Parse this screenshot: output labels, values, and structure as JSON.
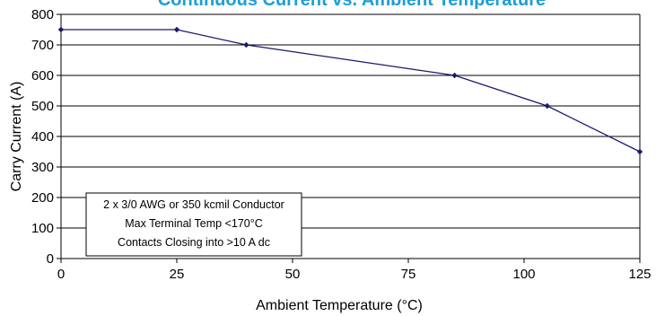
{
  "chart_data": {
    "type": "line",
    "title": "Continuous Current vs. Ambient Temperature",
    "xlabel": "Ambient Temperature (°C)",
    "ylabel": "Carry Current (A)",
    "xlim": [
      0,
      125
    ],
    "ylim": [
      0,
      800
    ],
    "xticks": [
      "0",
      "25",
      "50",
      "75",
      "100",
      "125"
    ],
    "yticks": [
      "0",
      "100",
      "200",
      "300",
      "400",
      "500",
      "600",
      "700",
      "800"
    ],
    "grid": "horizontal",
    "series": [
      {
        "x": [
          0,
          25,
          40,
          85,
          105,
          125
        ],
        "y": [
          750,
          750,
          700,
          600,
          500,
          350
        ]
      }
    ],
    "annotation": [
      "2 x 3/0 AWG or 350 kcmil Conductor",
      "Max Terminal Temp <170°C",
      "Contacts Closing into >10 A dc"
    ],
    "colors": {
      "line": "#1a1a6e",
      "marker": "#1a1a6e",
      "title": "#1b9ed9",
      "grid": "#000000"
    }
  }
}
